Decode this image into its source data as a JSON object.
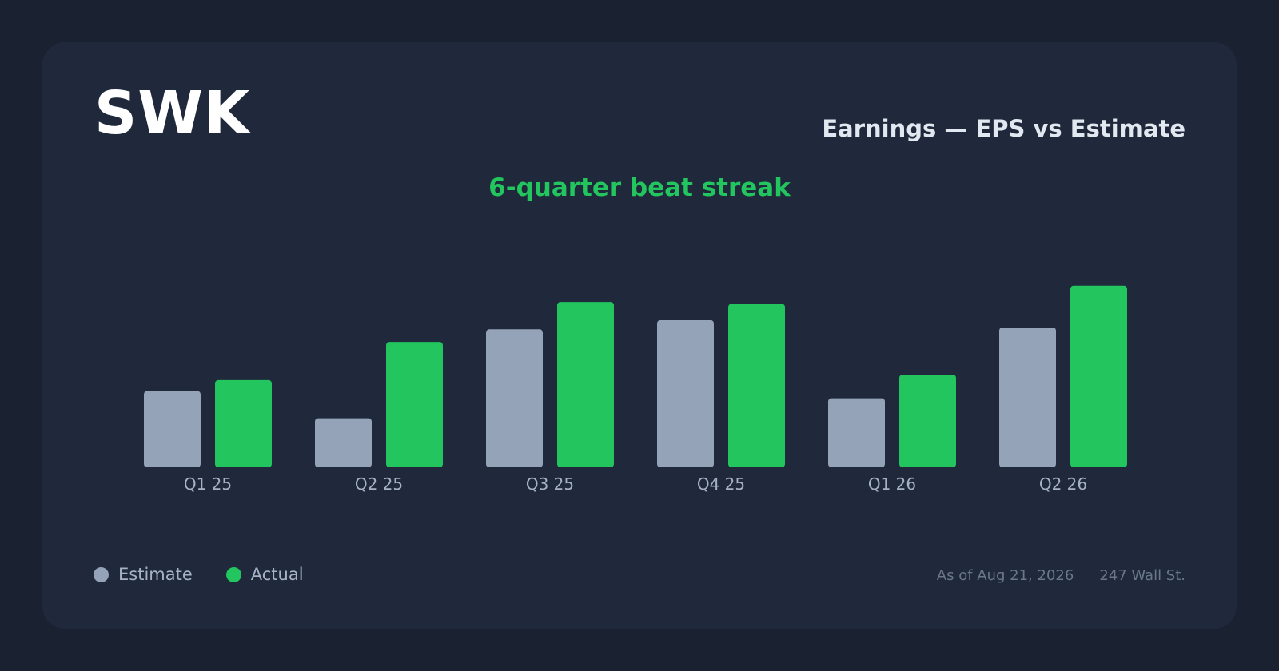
{
  "header": {
    "ticker": "SWK",
    "subtitle": "Earnings — EPS vs Estimate",
    "headline": "6-quarter beat streak"
  },
  "legend": {
    "estimate_label": "Estimate",
    "actual_label": "Actual"
  },
  "footer": {
    "as_of": "As of Aug 21, 2026",
    "source": "247 Wall St."
  },
  "colors": {
    "estimate": "#94a3b8",
    "actual": "#22c55e"
  },
  "chart_data": {
    "type": "bar",
    "title": "",
    "categories": [
      "Q1 25",
      "Q2 25",
      "Q3 25",
      "Q4 25",
      "Q1 26",
      "Q2 26"
    ],
    "series": [
      {
        "name": "Estimate",
        "values": [
          0.42,
          0.27,
          0.76,
          0.81,
          0.38,
          0.77
        ]
      },
      {
        "name": "Actual",
        "values": [
          0.48,
          0.69,
          0.91,
          0.9,
          0.51,
          1.0
        ]
      }
    ],
    "ylim": [
      0,
      1.1
    ],
    "xlabel": "",
    "ylabel": "",
    "grid": false,
    "legend_position": "bottom-left"
  }
}
